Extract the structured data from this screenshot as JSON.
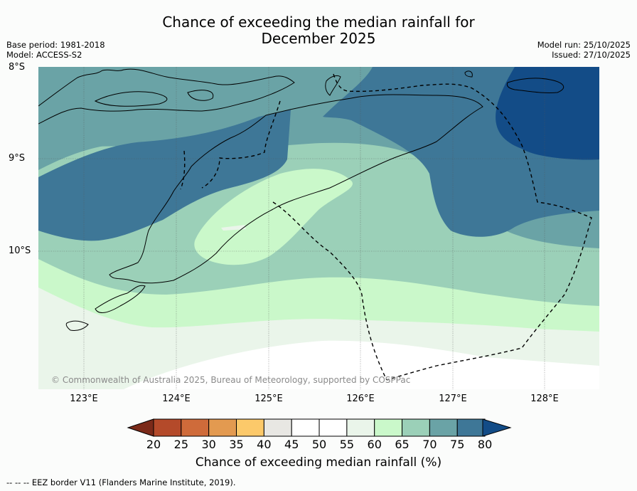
{
  "title_line1": "Chance of exceeding the median rainfall for",
  "title_line2": "December 2025",
  "base_period": "Base period: 1981-2018",
  "model": "Model: ACCESS-S2",
  "model_run": "Model run: 25/10/2025",
  "issued": "Issued: 27/10/2025",
  "lat_labels": [
    "8°S",
    "9°S",
    "10°S"
  ],
  "lon_labels": [
    "123°E",
    "124°E",
    "125°E",
    "126°E",
    "127°E",
    "128°E"
  ],
  "copyright": "© Commonwealth of Australia 2025, Bureau of Meteorology, supported by COSPPac",
  "legend": {
    "title": "Chance of exceeding median rainfall (%)",
    "ticks": [
      "20",
      "25",
      "30",
      "35",
      "40",
      "45",
      "50",
      "55",
      "60",
      "65",
      "70",
      "75",
      "80"
    ],
    "colors": [
      "#7b2a19",
      "#b44a2a",
      "#cf6b3a",
      "#e39a50",
      "#fcc96a",
      "#e8e7e3",
      "#ffffff",
      "#ffffff",
      "#eaf5ea",
      "#caf8ca",
      "#9bd0b8",
      "#6aa3a6",
      "#3e7797",
      "#134c87"
    ]
  },
  "footnote": "--  --  -- EEZ border V11 (Flanders Marine Institute, 2019).",
  "icons": {
    "colorbar_left": "triangle-left-icon",
    "colorbar_right": "triangle-right-icon"
  }
}
